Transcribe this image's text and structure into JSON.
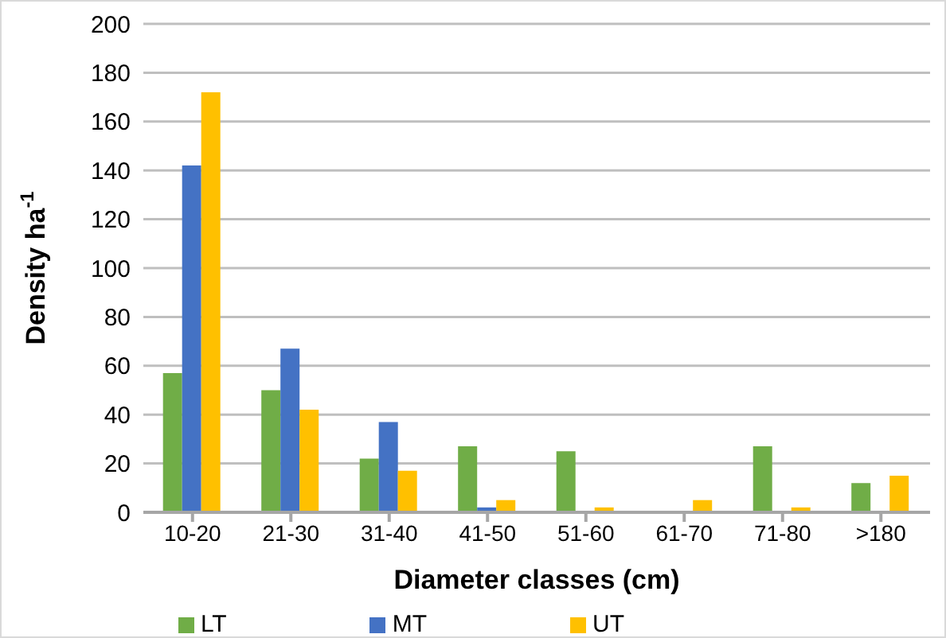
{
  "chart_data": {
    "type": "bar",
    "xlabel": "Diameter classes (cm)",
    "ylabel": "Density ha$^{-1}$",
    "categories": [
      "10-20",
      "21-30",
      "31-40",
      "41-50",
      "51-60",
      "61-70",
      "71-80",
      ">180"
    ],
    "series": [
      {
        "name": "LT",
        "color": "#70ad47",
        "values": [
          57,
          50,
          22,
          27,
          25,
          0,
          27,
          12
        ]
      },
      {
        "name": "MT",
        "color": "#4472c4",
        "values": [
          142,
          67,
          37,
          2,
          0,
          0,
          0,
          0
        ]
      },
      {
        "name": "UT",
        "color": "#ffc000",
        "values": [
          172,
          42,
          17,
          5,
          2,
          5,
          2,
          15
        ]
      }
    ],
    "ylim": [
      0,
      200
    ],
    "yticks": [
      0,
      20,
      40,
      60,
      80,
      100,
      120,
      140,
      160,
      180,
      200
    ],
    "grid": "y",
    "legend": "bottom"
  }
}
